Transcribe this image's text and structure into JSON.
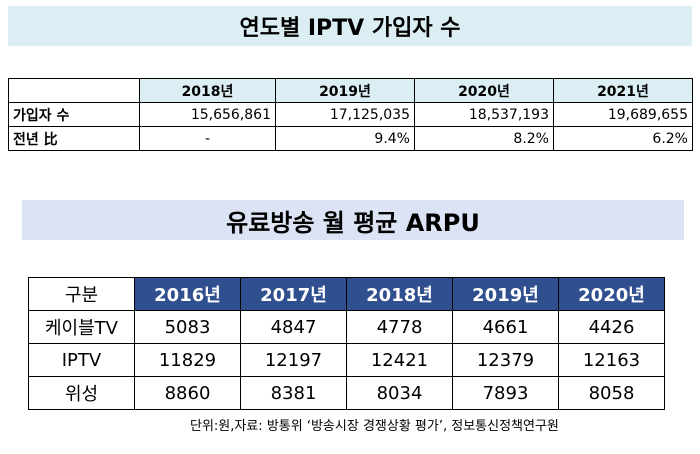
{
  "table1": {
    "title": "연도별 IPTV 가입자 수",
    "headers": [
      "",
      "2018년",
      "2019년",
      "2020년",
      "2021년"
    ],
    "rows": [
      [
        "가입자 수",
        "15,656,861",
        "17,125,035",
        "18,537,193",
        "19,689,655"
      ],
      [
        "전년 比",
        "-",
        "9.4%",
        "8.2%",
        "6.2%"
      ]
    ]
  },
  "table2": {
    "title": "유료방송 월 평균 ARPU",
    "headers": [
      "구분",
      "2016년",
      "2017년",
      "2018년",
      "2019년",
      "2020년"
    ],
    "rows": [
      [
        "케이블TV",
        "5083",
        "4847",
        "4778",
        "4661",
        "4426"
      ],
      [
        "IPTV",
        "11829",
        "12197",
        "12421",
        "12379",
        "12163"
      ],
      [
        "위성",
        "8860",
        "8381",
        "8034",
        "7893",
        "8058"
      ]
    ]
  },
  "footnote": "단위:원,자료: 방통위 ‘방송시장 경쟁상황 평가’, 정보통신정책연구원"
}
